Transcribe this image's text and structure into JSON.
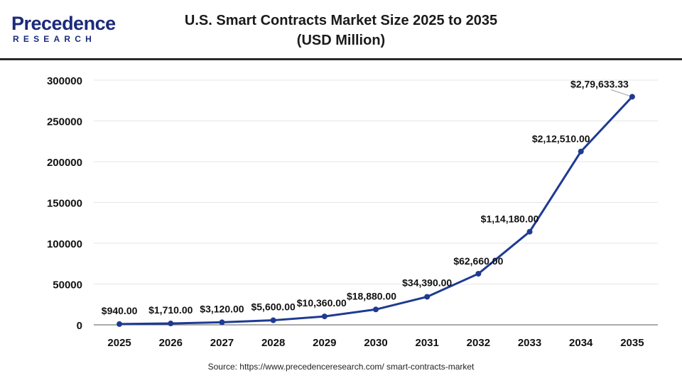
{
  "header": {
    "logo_main": "Precedence",
    "logo_sub": "RESEARCH",
    "title_line1": "U.S. Smart Contracts Market Size 2025 to 2035",
    "title_line2": "(USD Million)"
  },
  "source": "Source: https://www.precedenceresearch.com/ smart-contracts-market",
  "colors": {
    "line": "#1f3a93",
    "marker": "#1f3a93",
    "grid": "#e6e6e6",
    "axis": "#555555",
    "brand": "#1b2a7a"
  },
  "chart_data": {
    "type": "line",
    "title": "U.S. Smart Contracts Market Size 2025 to 2035",
    "subtitle": "(USD Million)",
    "xlabel": "",
    "ylabel": "",
    "categories": [
      "2025",
      "2026",
      "2027",
      "2028",
      "2029",
      "2030",
      "2031",
      "2032",
      "2033",
      "2034",
      "2035"
    ],
    "values": [
      940,
      1710,
      3120,
      5600,
      10360,
      18880,
      34390,
      62660,
      114180,
      212510,
      279633.33
    ],
    "data_labels": [
      "$940.00",
      "$1,710.00",
      "$3,120.00",
      "$5,600.00",
      "$10,360.00",
      "$18,880.00",
      "$34,390.00",
      "$62,660.00",
      "$1,14,180.00",
      "$2,12,510.00",
      "$2,79,633.33"
    ],
    "y_ticks": [
      "0",
      "50000",
      "100000",
      "150000",
      "200000",
      "250000",
      "300000"
    ],
    "ylim": [
      0,
      300000
    ],
    "grid": "horizontal",
    "legend": "none"
  }
}
